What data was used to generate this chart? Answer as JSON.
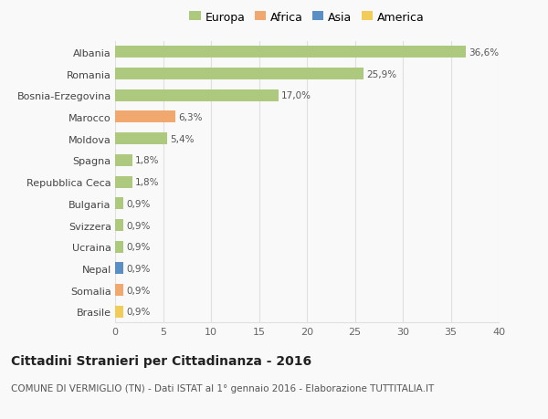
{
  "categories": [
    "Albania",
    "Romania",
    "Bosnia-Erzegovina",
    "Marocco",
    "Moldova",
    "Spagna",
    "Repubblica Ceca",
    "Bulgaria",
    "Svizzera",
    "Ucraina",
    "Nepal",
    "Somalia",
    "Brasile"
  ],
  "values": [
    36.6,
    25.9,
    17.0,
    6.3,
    5.4,
    1.8,
    1.8,
    0.9,
    0.9,
    0.9,
    0.9,
    0.9,
    0.9
  ],
  "labels": [
    "36,6%",
    "25,9%",
    "17,0%",
    "6,3%",
    "5,4%",
    "1,8%",
    "1,8%",
    "0,9%",
    "0,9%",
    "0,9%",
    "0,9%",
    "0,9%",
    "0,9%"
  ],
  "continents": [
    "Europa",
    "Europa",
    "Europa",
    "Africa",
    "Europa",
    "Europa",
    "Europa",
    "Europa",
    "Europa",
    "Europa",
    "Asia",
    "Africa",
    "America"
  ],
  "continent_colors": {
    "Europa": "#adc97e",
    "Africa": "#f0a86e",
    "Asia": "#5b8ec4",
    "America": "#f2cc5a"
  },
  "legend_order": [
    "Europa",
    "Africa",
    "Asia",
    "America"
  ],
  "xlim": [
    0,
    40
  ],
  "xticks": [
    0,
    5,
    10,
    15,
    20,
    25,
    30,
    35,
    40
  ],
  "title": "Cittadini Stranieri per Cittadinanza - 2016",
  "subtitle": "COMUNE DI VERMIGLIO (TN) - Dati ISTAT al 1° gennaio 2016 - Elaborazione TUTTITALIA.IT",
  "background_color": "#f9f9f9",
  "grid_color": "#e0e0e0",
  "bar_height": 0.55,
  "label_fontsize": 7.5,
  "ytick_fontsize": 8,
  "xtick_fontsize": 8,
  "title_fontsize": 10,
  "subtitle_fontsize": 7.5,
  "legend_fontsize": 9
}
